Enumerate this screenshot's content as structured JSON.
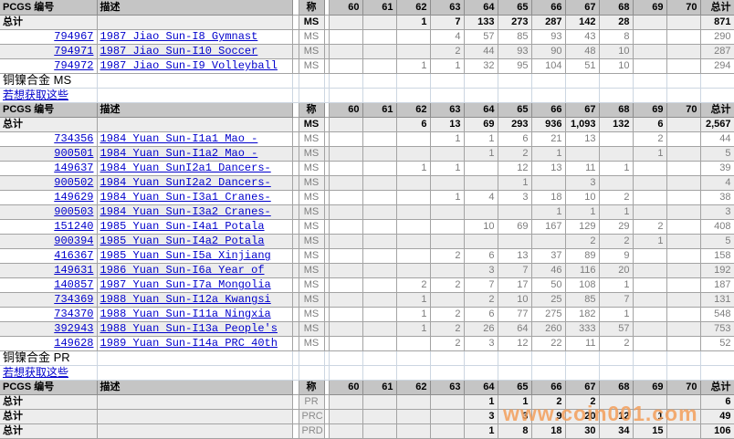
{
  "header": {
    "id": "PCGS 编号",
    "desc": "描述",
    "grade": "称",
    "cols": [
      "60",
      "61",
      "62",
      "63",
      "64",
      "65",
      "66",
      "67",
      "68",
      "69",
      "70"
    ],
    "total": "总计"
  },
  "colors": {
    "link": "#0000cc",
    "watermark": "#f49f5b"
  },
  "watermark": "www.coin001.com",
  "blocks": [
    {
      "kind": "section",
      "rows": [
        {
          "type": "total",
          "label": "总计",
          "grade": "MS",
          "v": {
            "62": "1",
            "63": "7",
            "64": "133",
            "65": "273",
            "66": "287",
            "67": "142",
            "68": "28"
          },
          "total": "871"
        },
        {
          "type": "data",
          "id": "794967",
          "desc": "1987 Jiao Sun-I8 Gymnast",
          "grade": "MS",
          "v": {
            "63": "4",
            "64": "57",
            "65": "85",
            "66": "93",
            "67": "43",
            "68": "8"
          },
          "total": "290"
        },
        {
          "type": "data",
          "id": "794971",
          "desc": "1987 Jiao Sun-I10 Soccer",
          "grade": "MS",
          "v": {
            "63": "2",
            "64": "44",
            "65": "93",
            "66": "90",
            "67": "48",
            "68": "10"
          },
          "total": "287"
        },
        {
          "type": "data",
          "id": "794972",
          "desc": "1987 Jiao Sun-I9 Volleyball",
          "grade": "MS",
          "v": {
            "62": "1",
            "63": "1",
            "64": "32",
            "65": "95",
            "66": "104",
            "67": "51",
            "68": "10"
          },
          "total": "294"
        }
      ]
    },
    {
      "kind": "break",
      "title": "铜镍合金  MS",
      "link": "若想获取这些"
    },
    {
      "kind": "section",
      "rows": [
        {
          "type": "total",
          "label": "总计",
          "grade": "MS",
          "v": {
            "62": "6",
            "63": "13",
            "64": "69",
            "65": "293",
            "66": "936",
            "67": "1,093",
            "68": "132",
            "69": "6"
          },
          "total": "2,567"
        },
        {
          "type": "data",
          "id": "734356",
          "desc": "1984 Yuan Sun-I1a1 Mao -",
          "grade": "MS",
          "v": {
            "63": "1",
            "64": "1",
            "65": "6",
            "66": "21",
            "67": "13",
            "69": "2"
          },
          "total": "44"
        },
        {
          "type": "data",
          "id": "900501",
          "desc": "1984 Yuan Sun-I1a2 Mao -",
          "grade": "MS",
          "v": {
            "64": "1",
            "65": "2",
            "66": "1",
            "69": "1"
          },
          "total": "5"
        },
        {
          "type": "data",
          "id": "149637",
          "desc": "1984 Yuan SunI2a1 Dancers-",
          "grade": "MS",
          "v": {
            "62": "1",
            "63": "1",
            "65": "12",
            "66": "13",
            "67": "11",
            "68": "1"
          },
          "total": "39"
        },
        {
          "type": "data",
          "id": "900502",
          "desc": "1984 Yuan SunI2a2 Dancers-",
          "grade": "MS",
          "v": {
            "65": "1",
            "67": "3"
          },
          "total": "4"
        },
        {
          "type": "data",
          "id": "149629",
          "desc": "1984 Yuan Sun-I3a1 Cranes-",
          "grade": "MS",
          "v": {
            "63": "1",
            "64": "4",
            "65": "3",
            "66": "18",
            "67": "10",
            "68": "2"
          },
          "total": "38"
        },
        {
          "type": "data",
          "id": "900503",
          "desc": "1984 Yuan Sun-I3a2 Cranes-",
          "grade": "MS",
          "v": {
            "66": "1",
            "67": "1",
            "68": "1"
          },
          "total": "3"
        },
        {
          "type": "data",
          "id": "151240",
          "desc": "1985 Yuan Sun-I4a1 Potala",
          "grade": "MS",
          "v": {
            "64": "10",
            "65": "69",
            "66": "167",
            "67": "129",
            "68": "29",
            "69": "2"
          },
          "total": "408"
        },
        {
          "type": "data",
          "id": "900394",
          "desc": "1985 Yuan Sun-I4a2 Potala",
          "grade": "MS",
          "v": {
            "67": "2",
            "68": "2",
            "69": "1"
          },
          "total": "5"
        },
        {
          "type": "data",
          "id": "416367",
          "desc": "1985 Yuan Sun-I5a Xinjiang",
          "grade": "MS",
          "v": {
            "63": "2",
            "64": "6",
            "65": "13",
            "66": "37",
            "67": "89",
            "68": "9"
          },
          "total": "158"
        },
        {
          "type": "data",
          "id": "149631",
          "desc": "1986 Yuan Sun-I6a Year of",
          "grade": "MS",
          "v": {
            "64": "3",
            "65": "7",
            "66": "46",
            "67": "116",
            "68": "20"
          },
          "total": "192"
        },
        {
          "type": "data",
          "id": "140857",
          "desc": "1987 Yuan Sun-I7a Mongolia",
          "grade": "MS",
          "v": {
            "62": "2",
            "63": "2",
            "64": "7",
            "65": "17",
            "66": "50",
            "67": "108",
            "68": "1"
          },
          "total": "187"
        },
        {
          "type": "data",
          "id": "734369",
          "desc": "1988 Yuan Sun-I12a Kwangsi",
          "grade": "MS",
          "v": {
            "62": "1",
            "64": "2",
            "65": "10",
            "66": "25",
            "67": "85",
            "68": "7"
          },
          "total": "131"
        },
        {
          "type": "data",
          "id": "734370",
          "desc": "1988 Yuan Sun-I11a Ningxia",
          "grade": "MS",
          "v": {
            "62": "1",
            "63": "2",
            "64": "6",
            "65": "77",
            "66": "275",
            "67": "182",
            "68": "1"
          },
          "total": "548"
        },
        {
          "type": "data",
          "id": "392943",
          "desc": "1988 Yuan Sun-I13a People's",
          "grade": "MS",
          "v": {
            "62": "1",
            "63": "2",
            "64": "26",
            "65": "64",
            "66": "260",
            "67": "333",
            "68": "57"
          },
          "total": "753"
        },
        {
          "type": "data",
          "id": "149628",
          "desc": "1989 Yuan Sun-I14a PRC 40th",
          "grade": "MS",
          "v": {
            "63": "2",
            "64": "3",
            "65": "12",
            "66": "22",
            "67": "11",
            "68": "2"
          },
          "total": "52"
        }
      ]
    },
    {
      "kind": "break",
      "title": "铜镍合金  PR",
      "link": "若想获取这些"
    },
    {
      "kind": "section",
      "rows": [
        {
          "type": "total",
          "label": "总计",
          "grade": "PR",
          "gm": true,
          "v": {
            "64": "1",
            "65": "1",
            "66": "2",
            "67": "2"
          },
          "total": "6"
        },
        {
          "type": "total",
          "label": "总计",
          "grade": "PRC",
          "gm": true,
          "v": {
            "64": "3",
            "65": "3",
            "66": "9",
            "67": "20",
            "68": "12",
            "69": "1"
          },
          "total": "49"
        },
        {
          "type": "total",
          "label": "总计",
          "grade": "PRD",
          "gm": true,
          "v": {
            "64": "1",
            "65": "8",
            "66": "18",
            "67": "30",
            "68": "34",
            "69": "15"
          },
          "total": "106"
        }
      ]
    }
  ]
}
